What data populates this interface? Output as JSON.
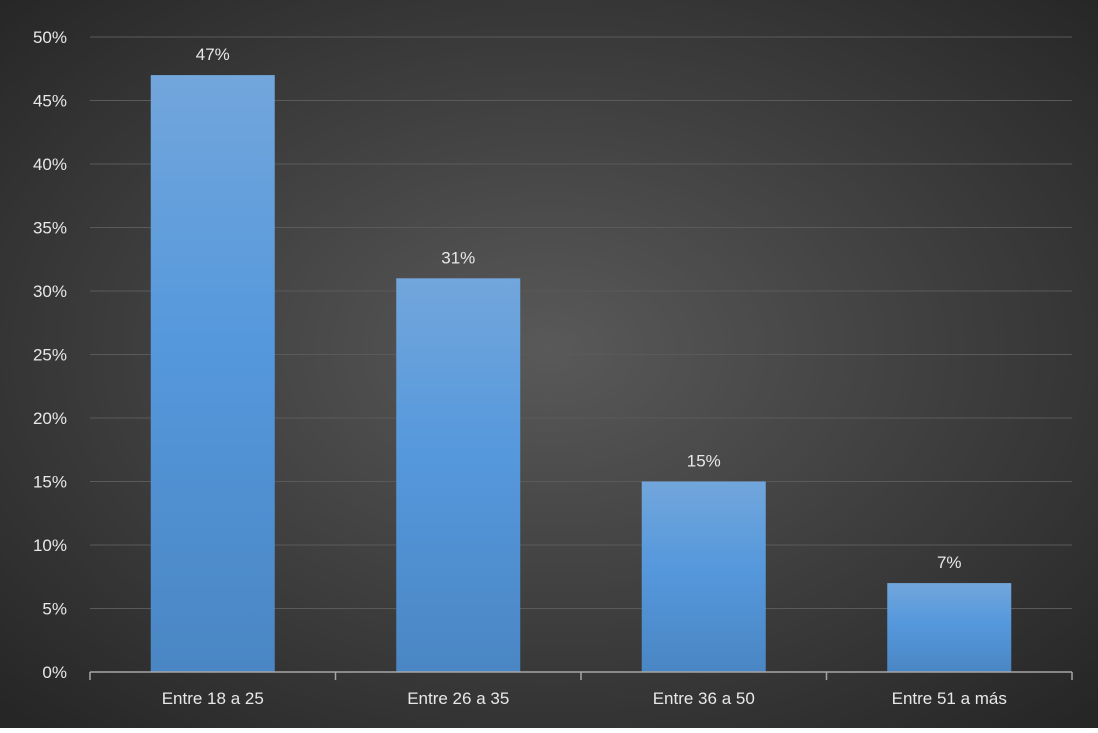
{
  "chart_data": {
    "type": "bar",
    "title": "",
    "xlabel": "",
    "ylabel": "",
    "categories": [
      "Entre 18 a 25",
      "Entre 26 a 35",
      "Entre 36 a 50",
      "Entre 51 a más"
    ],
    "values": [
      47,
      31,
      15,
      7
    ],
    "data_labels": [
      "47%",
      "31%",
      "15%",
      "7%"
    ],
    "ylim": [
      0,
      50
    ],
    "yticks": [
      0,
      5,
      10,
      15,
      20,
      25,
      30,
      35,
      40,
      45,
      50
    ],
    "ytick_labels": [
      "0%",
      "5%",
      "10%",
      "15%",
      "20%",
      "25%",
      "30%",
      "35%",
      "40%",
      "45%",
      "50%"
    ],
    "grid": true,
    "legend": "none"
  },
  "colors": {
    "background_center": "#595959",
    "background_edge": "#262626",
    "bar_top": "#72a6dc",
    "bar_middle": "#5598dc",
    "bar_bottom": "#4a86c4",
    "gridline": "#5a5a5a",
    "axis_line": "#a6a6a6",
    "text": "#e8e8e8"
  }
}
